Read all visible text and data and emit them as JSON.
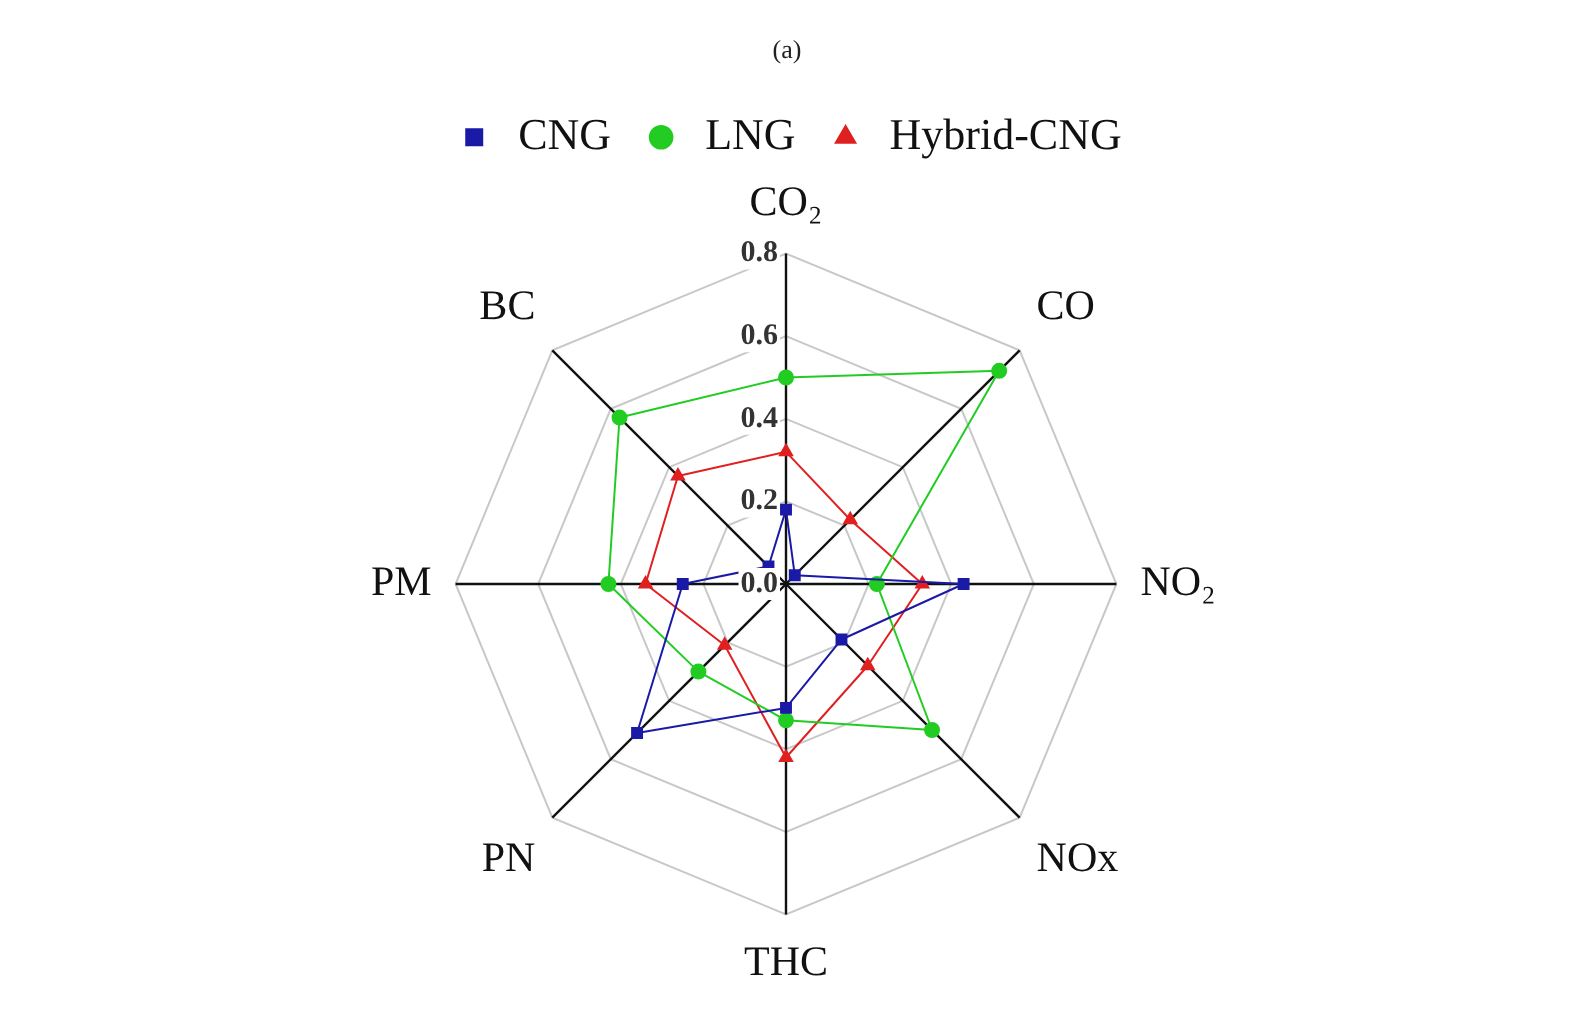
{
  "chart_data": {
    "type": "radar",
    "title": "(a)",
    "categories": [
      "CO₂",
      "CO",
      "NO₂",
      "NOx",
      "THC",
      "PN",
      "PM",
      "BC"
    ],
    "series": [
      {
        "name": "CNG",
        "color": "#1a1aa6",
        "marker": "square",
        "values": [
          0.18,
          0.03,
          0.43,
          0.19,
          0.3,
          0.51,
          0.25,
          0.06
        ]
      },
      {
        "name": "LNG",
        "color": "#22cc22",
        "marker": "circle",
        "values": [
          0.5,
          0.73,
          0.22,
          0.5,
          0.33,
          0.3,
          0.43,
          0.57
        ]
      },
      {
        "name": "Hybrid-CNG",
        "color": "#e02020",
        "marker": "triangle",
        "values": [
          0.32,
          0.22,
          0.33,
          0.28,
          0.42,
          0.21,
          0.34,
          0.37
        ]
      }
    ],
    "ylim": [
      0,
      0.8
    ],
    "yticks": [
      {
        "value": 0,
        "label": "0.0"
      },
      0.2,
      0.4,
      0.6,
      0.8
    ],
    "grid": true,
    "legend": "top",
    "line_style": "solid"
  }
}
